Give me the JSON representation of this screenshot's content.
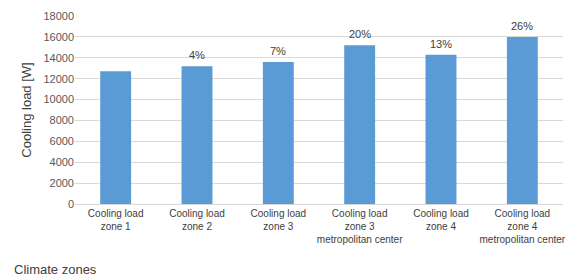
{
  "chart_data": {
    "type": "bar",
    "y_label": "Cooling load [W]",
    "x_label": "Climate zones",
    "categories": [
      "Cooling load\nzone 1",
      "Cooling load\nzone 2",
      "Cooling load\nzone 3",
      "Cooling load\nzone 3\nmetropolitan center",
      "Cooling load\nzone 4",
      "Cooling load\nzone 4\nmetropolitan center"
    ],
    "values": [
      12700,
      13200,
      13600,
      15200,
      14300,
      16000
    ],
    "color": "#5b9bd5",
    "ylim": [
      0,
      18000
    ],
    "yticks": [
      0,
      2000,
      4000,
      6000,
      8000,
      10000,
      12000,
      14000,
      16000,
      18000
    ],
    "grid": true,
    "annotations": [
      {
        "category": "Cooling load\nzone 2",
        "text": "4%"
      },
      {
        "category": "Cooling load\nzone 3",
        "text": "7%"
      },
      {
        "category": "Cooling load\nzone 3\nmetropolitan center",
        "text": "20%"
      },
      {
        "category": "Cooling load\nzone 4",
        "text": "13%"
      },
      {
        "category": "Cooling load\nzone 4\nmetropolitan center",
        "text": "26%"
      }
    ]
  }
}
